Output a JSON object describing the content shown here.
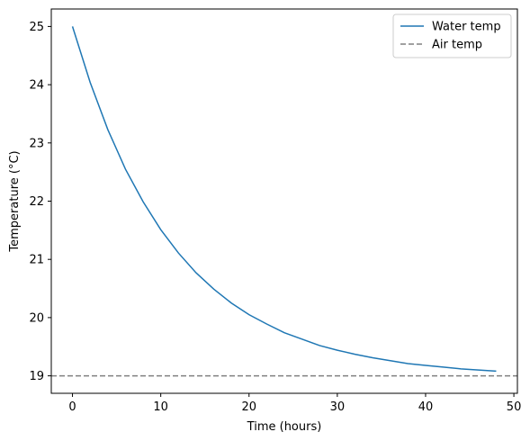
{
  "chart_data": {
    "type": "line",
    "title": "",
    "xlabel": "Time (hours)",
    "ylabel": "Temperature (°C)",
    "xlim": [
      -2.4,
      50.4
    ],
    "ylim": [
      18.7,
      25.3
    ],
    "xticks": [
      0,
      10,
      20,
      30,
      40,
      50
    ],
    "yticks": [
      19,
      20,
      21,
      22,
      23,
      24,
      25
    ],
    "grid": false,
    "legend_position": "upper right",
    "series": [
      {
        "name": "Water temp",
        "color": "#1f77b4",
        "style": "solid",
        "x": [
          0,
          2,
          4,
          6,
          8,
          10,
          12,
          14,
          16,
          18,
          20,
          22,
          24,
          26,
          28,
          30,
          32,
          34,
          36,
          38,
          40,
          42,
          44,
          46,
          48
        ],
        "y": [
          25.0,
          24.04,
          23.23,
          22.55,
          21.99,
          21.51,
          21.11,
          20.77,
          20.49,
          20.25,
          20.05,
          19.89,
          19.74,
          19.63,
          19.52,
          19.44,
          19.37,
          19.31,
          19.26,
          19.21,
          19.18,
          19.15,
          19.12,
          19.1,
          19.08
        ]
      },
      {
        "name": "Air temp",
        "color": "#808080",
        "style": "dashed",
        "y_constant": 19
      }
    ]
  }
}
